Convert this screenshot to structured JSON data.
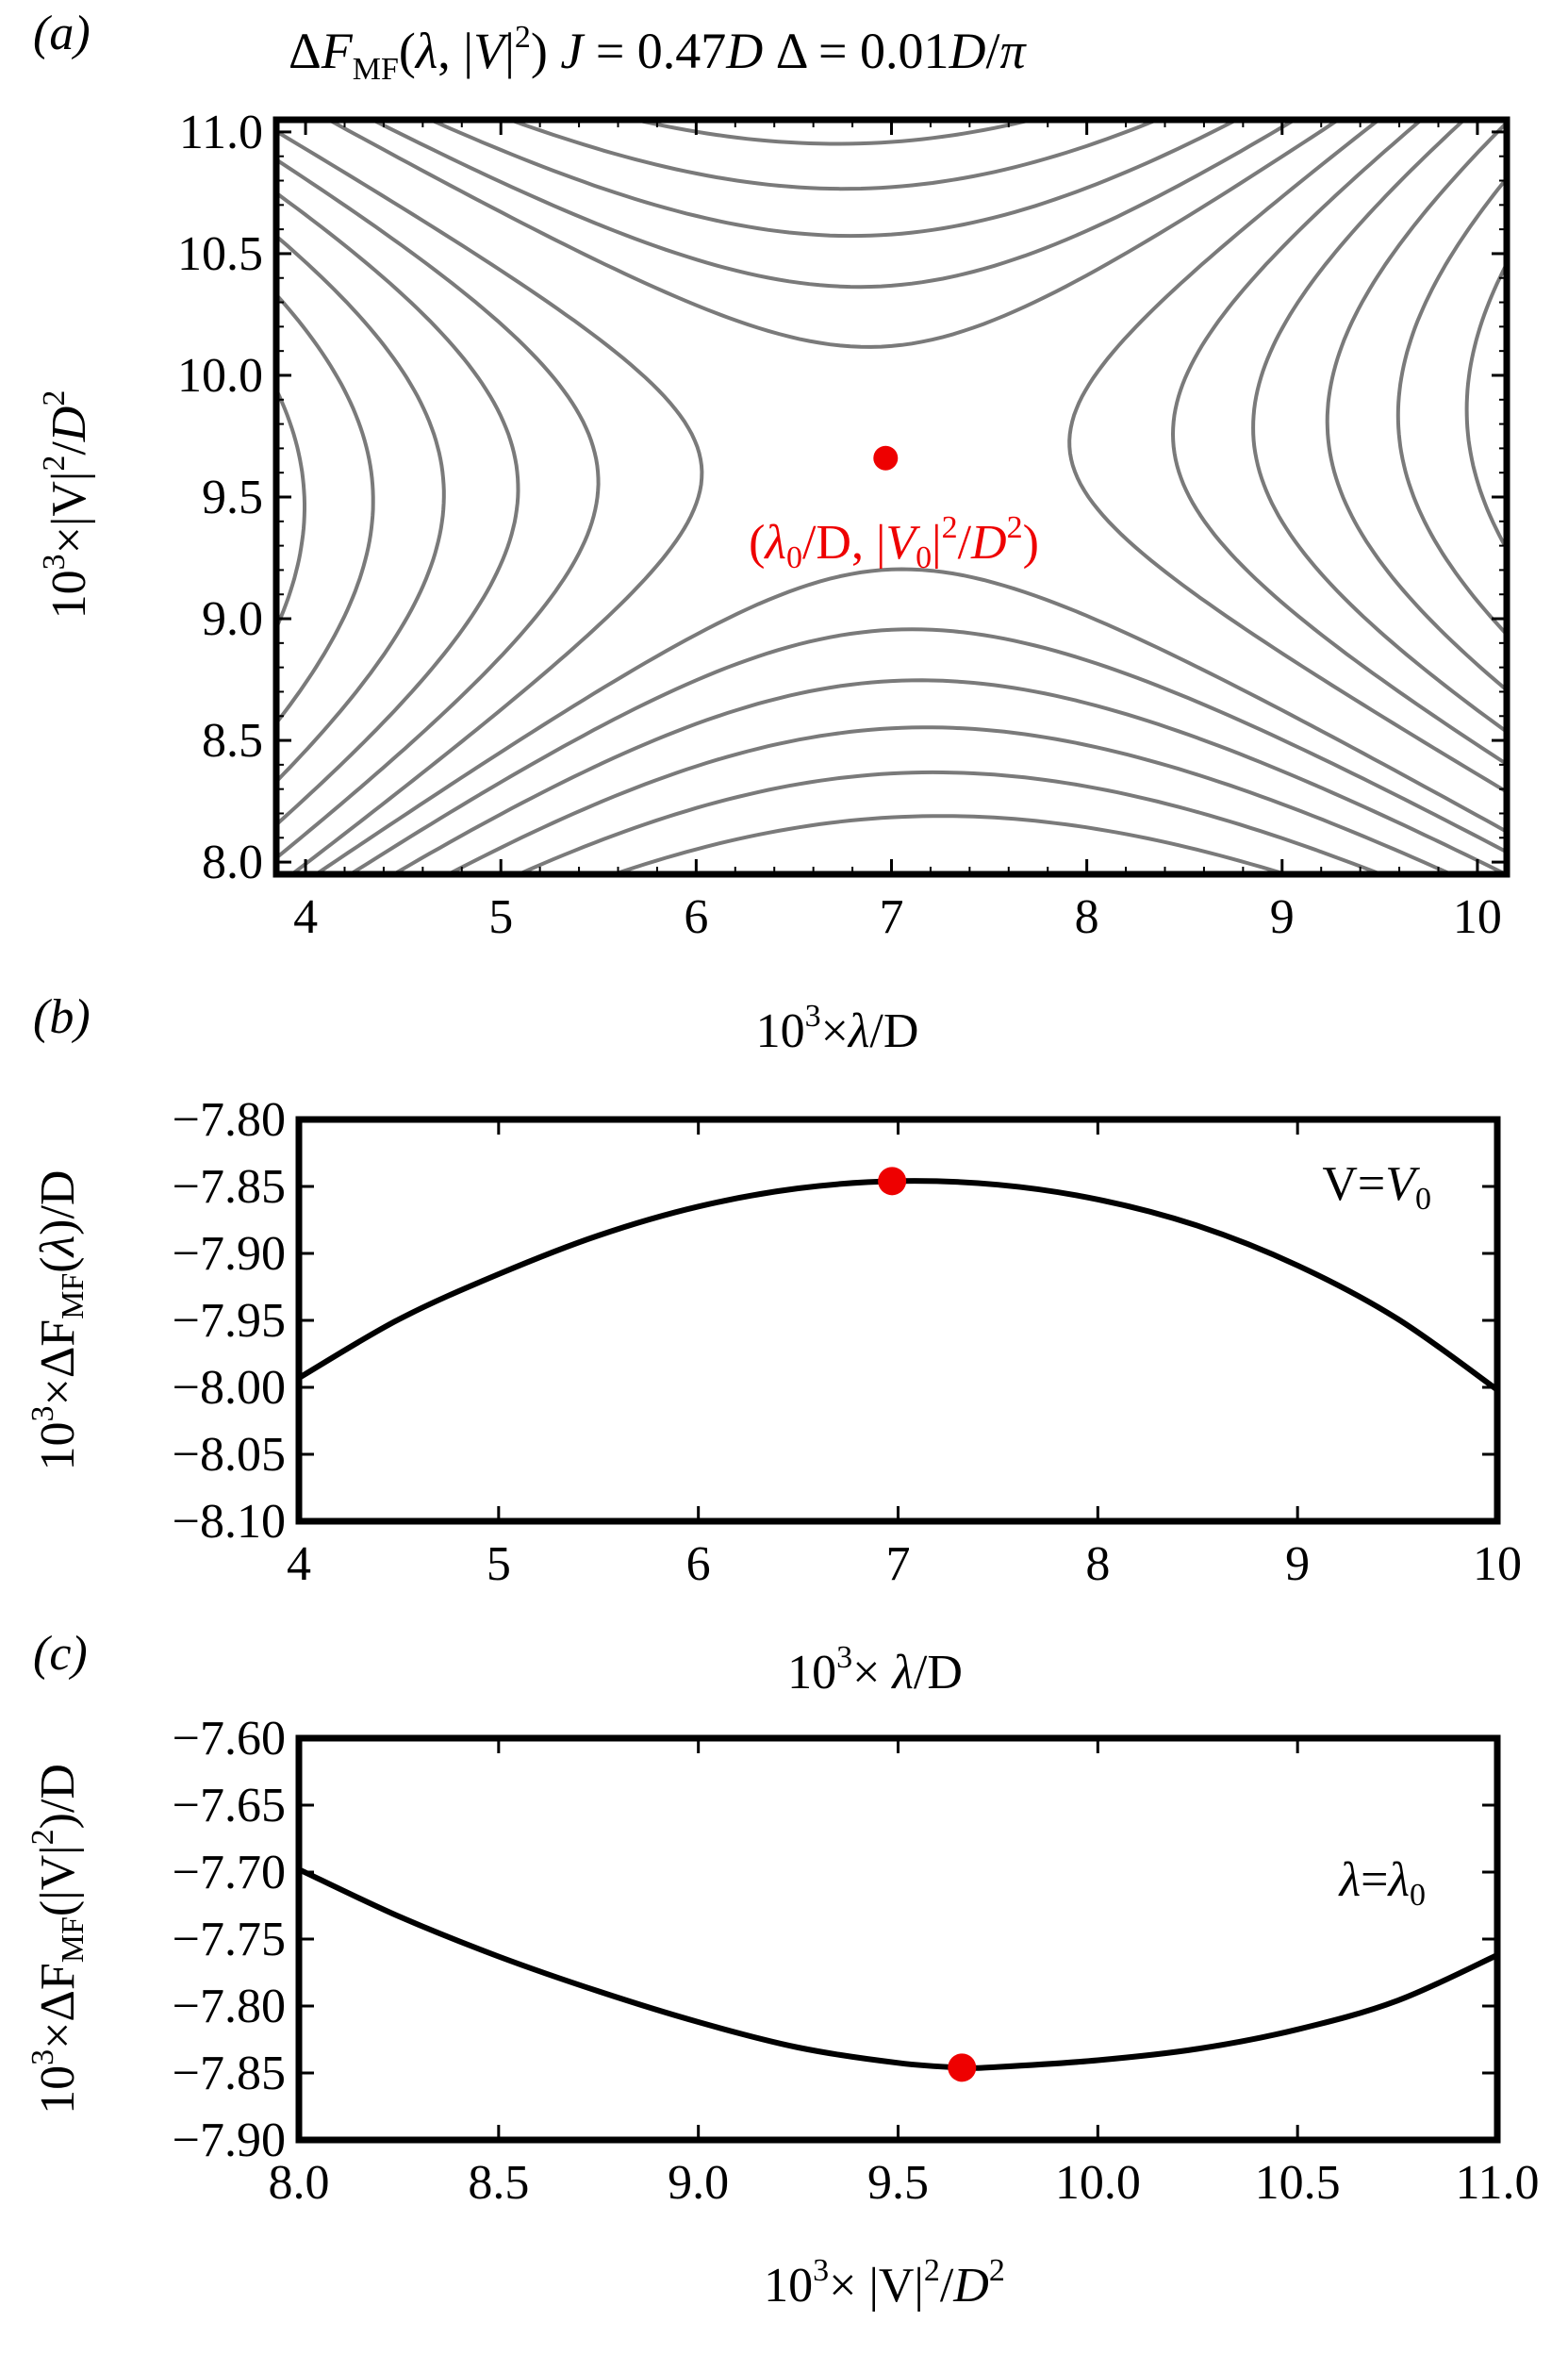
{
  "colors": {
    "contour": "#7a7a7a",
    "curve": "#000000",
    "marker": "#ee0000",
    "frame": "#000000"
  },
  "panel_a": {
    "tag": "(a)",
    "title": "ΔF_MF(λ, |V|²)   J = 0.47D   Δ = 0.01D/π",
    "point_label": "(λ0/D, |V0|²/D²)"
  },
  "panel_b": {
    "tag": "(b)",
    "annotation": "V=V0"
  },
  "panel_c": {
    "tag": "(c)",
    "annotation": "λ=λ0"
  },
  "chart_data": [
    {
      "type": "contour",
      "title": "ΔF_MF(λ, |V|²)   J = 0.47D   Δ = 0.01D/π",
      "xlabel": "10³×λ/D",
      "ylabel": "10³×|V|²/D²",
      "xlim": [
        3.85,
        10.15
      ],
      "ylim": [
        7.95,
        11.05
      ],
      "xticks": [
        4,
        5,
        6,
        7,
        8,
        9,
        10
      ],
      "yticks": [
        "8.0",
        "8.5",
        "9.0",
        "9.5",
        "10.0",
        "10.5",
        "11.0"
      ],
      "saddle_point": {
        "x": 6.97,
        "y": 9.66,
        "label": "(λ0/D, |V0|²/D²)"
      },
      "contour_levels": 12
    },
    {
      "type": "line",
      "xlabel": "10³× λ/D",
      "ylabel": "10³×ΔF_MF(λ)/D",
      "xlim": [
        4,
        10
      ],
      "ylim": [
        -8.1,
        -7.8
      ],
      "xticks": [
        4,
        5,
        6,
        7,
        8,
        9,
        10
      ],
      "yticks": [
        "-7.80",
        "-7.85",
        "-7.90",
        "-7.95",
        "-8.00",
        "-8.05",
        "-8.10"
      ],
      "series": [
        {
          "name": "V=V0",
          "x": [
            4,
            4.5,
            5,
            5.5,
            6,
            6.5,
            7,
            7.5,
            8,
            8.5,
            9,
            9.5,
            10
          ],
          "y": [
            -7.993,
            -7.9493,
            -7.9155,
            -7.8866,
            -7.865,
            -7.8514,
            -7.846,
            -7.8487,
            -7.8597,
            -7.8794,
            -7.909,
            -7.9488,
            -8.0018
          ]
        }
      ],
      "marker": {
        "x": 6.97,
        "y": -7.846
      },
      "annotation": "V=V0"
    },
    {
      "type": "line",
      "xlabel": "10³× |V|²/D²",
      "ylabel": "10³×ΔF_MF(|V|²)/D",
      "xlim": [
        8.0,
        11.0
      ],
      "ylim": [
        -7.9,
        -7.6
      ],
      "xticks": [
        "8.0",
        "8.5",
        "9.0",
        "9.5",
        "10.0",
        "10.5",
        "11.0"
      ],
      "yticks": [
        "-7.60",
        "-7.65",
        "-7.70",
        "-7.75",
        "-7.80",
        "-7.85",
        "-7.90"
      ],
      "series": [
        {
          "name": "λ=λ0",
          "x": [
            8.0,
            8.25,
            8.5,
            8.75,
            9.0,
            9.25,
            9.5,
            9.66,
            9.75,
            10.0,
            10.25,
            10.5,
            10.75,
            11.0
          ],
          "y": [
            -7.698,
            -7.733,
            -7.763,
            -7.789,
            -7.812,
            -7.831,
            -7.8425,
            -7.846,
            -7.8455,
            -7.8405,
            -7.832,
            -7.8175,
            -7.796,
            -7.762
          ]
        }
      ],
      "marker": {
        "x": 9.66,
        "y": -7.846
      },
      "annotation": "λ=λ0"
    }
  ]
}
